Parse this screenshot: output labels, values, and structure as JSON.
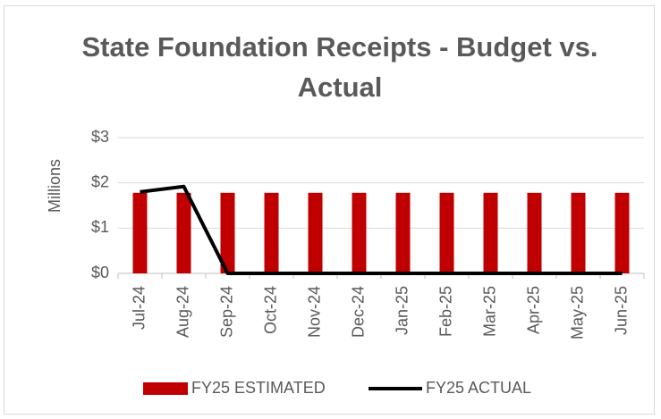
{
  "chart_data": {
    "type": "combo",
    "title": "State Foundation Receipts -  Budget vs. Actual",
    "y_axis_label": "Millions",
    "categories": [
      "Jul-24",
      "Aug-24",
      "Sep-24",
      "Oct-24",
      "Nov-24",
      "Dec-24",
      "Jan-25",
      "Feb-25",
      "Mar-25",
      "Apr-25",
      "May-25",
      "Jun-25"
    ],
    "series": [
      {
        "name": "FY25 ESTIMATED",
        "type": "bar",
        "color": "#c00000",
        "values": [
          1.78,
          1.78,
          1.78,
          1.78,
          1.78,
          1.78,
          1.78,
          1.78,
          1.78,
          1.78,
          1.78,
          1.78
        ]
      },
      {
        "name": "FY25 ACTUAL",
        "type": "line",
        "color": "#000000",
        "values": [
          1.8,
          1.92,
          0,
          0,
          0,
          0,
          0,
          0,
          0,
          0,
          0,
          0
        ]
      }
    ],
    "ylim": [
      0,
      3
    ],
    "yticks": [
      {
        "value": 0,
        "label": "$0"
      },
      {
        "value": 1,
        "label": "$1"
      },
      {
        "value": 2,
        "label": "$2"
      },
      {
        "value": 3,
        "label": "$3"
      }
    ],
    "grid": true,
    "legend": "bottom"
  }
}
